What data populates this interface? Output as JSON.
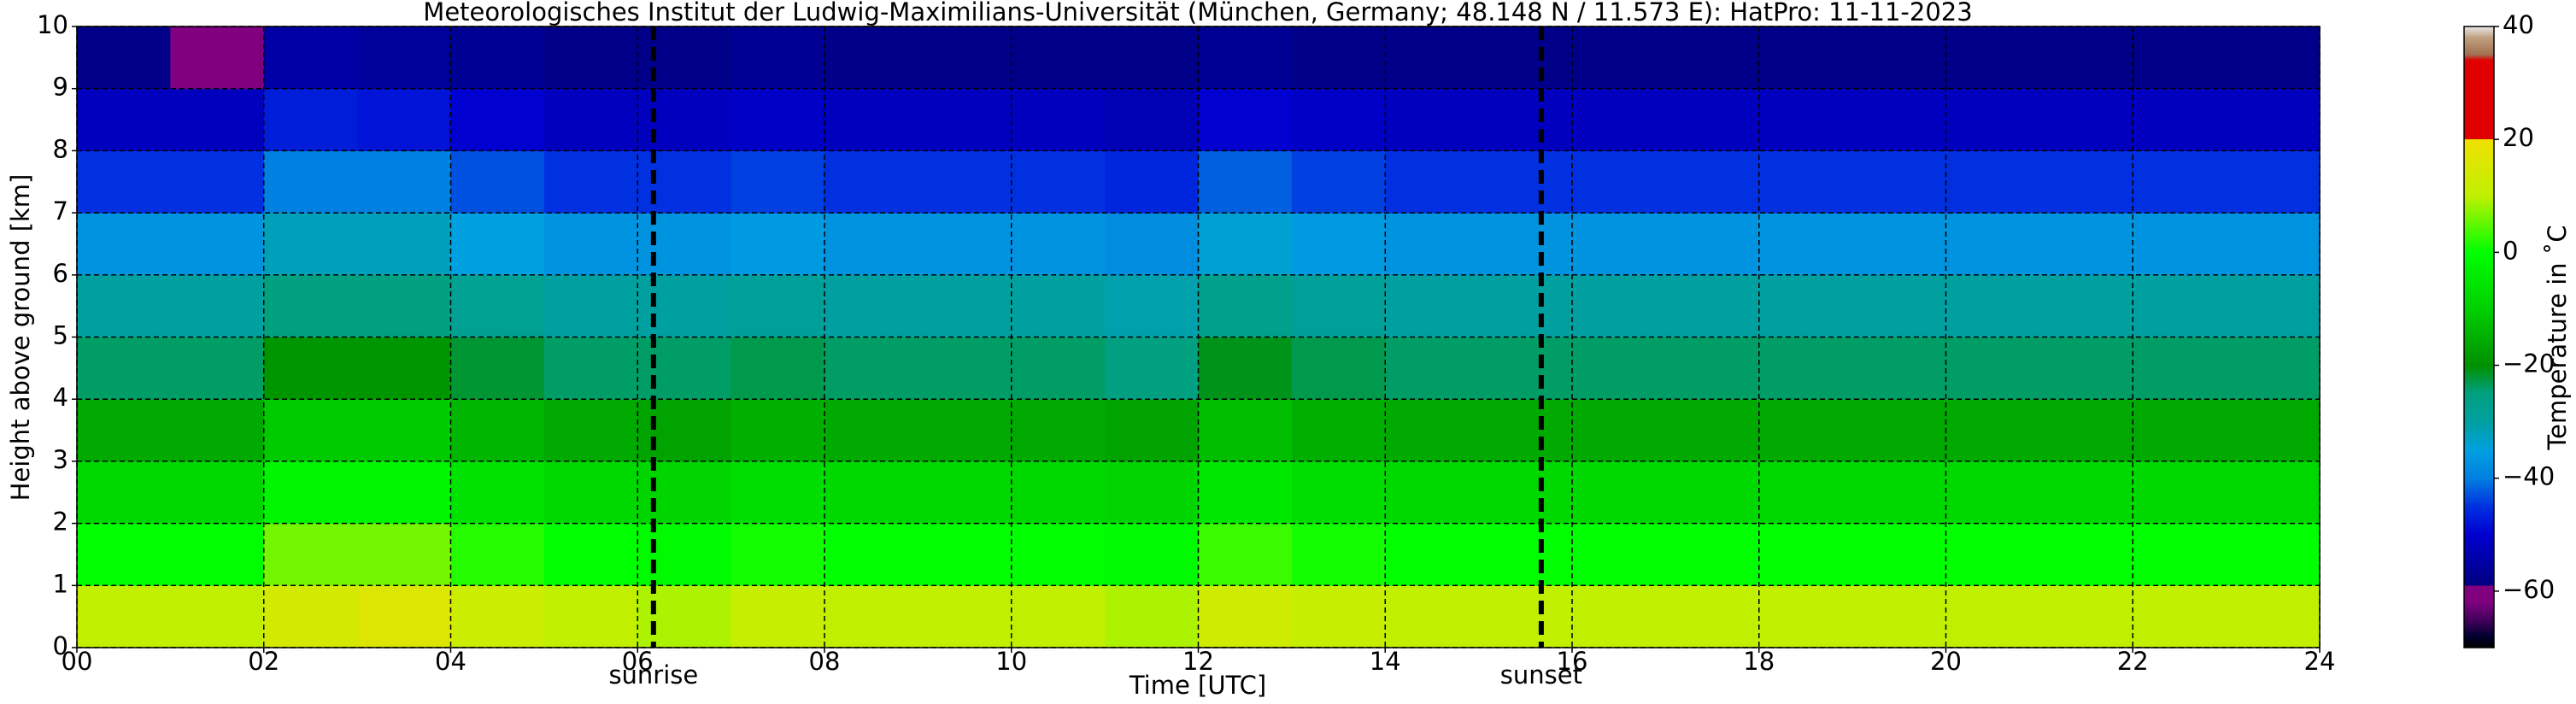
{
  "chart_data": {
    "type": "heatmap",
    "title": "Meteorologisches Institut der Ludwig-Maximilians-Universität (München, Germany; 48.148 N / 11.573 E):    HatPro: 11-11-2023",
    "xlabel": "Time [UTC]",
    "ylabel": "Height above ground [km]",
    "xbins": [
      0,
      1,
      2,
      3,
      4,
      5,
      6,
      7,
      8,
      9,
      10,
      11,
      12,
      13,
      14,
      15,
      16,
      17,
      18,
      19,
      20,
      21,
      22,
      23,
      24
    ],
    "ybins": [
      0,
      1,
      2,
      3,
      4,
      5,
      6,
      7,
      8,
      9,
      10
    ],
    "values": [
      [
        10,
        10,
        14,
        16,
        12,
        10,
        9,
        11,
        10,
        10,
        10,
        9,
        13,
        11,
        10,
        10,
        10,
        10,
        10,
        10,
        10,
        10,
        10,
        10
      ],
      [
        0,
        0,
        6,
        6,
        2,
        0,
        -1,
        1,
        0,
        0,
        0,
        -1,
        3,
        1,
        0,
        0,
        0,
        0,
        0,
        0,
        0,
        0,
        0,
        0
      ],
      [
        -8,
        -8,
        -2,
        -2,
        -6,
        -8,
        -9,
        -7,
        -8,
        -8,
        -8,
        -9,
        -5,
        -7,
        -8,
        -8,
        -8,
        -8,
        -8,
        -8,
        -8,
        -8,
        -8,
        -8
      ],
      [
        -16,
        -16,
        -11,
        -11,
        -14,
        -16,
        -17,
        -15,
        -16,
        -16,
        -16,
        -17,
        -13,
        -15,
        -16,
        -16,
        -16,
        -16,
        -16,
        -16,
        -16,
        -16,
        -16,
        -16
      ],
      [
        -24,
        -24,
        -19,
        -19,
        -22,
        -24,
        -24,
        -23,
        -24,
        -24,
        -24,
        -25,
        -21,
        -23,
        -24,
        -24,
        -24,
        -24,
        -24,
        -24,
        -24,
        -24,
        -24,
        -24
      ],
      [
        -30,
        -30,
        -25,
        -25,
        -28,
        -30,
        -30,
        -29,
        -30,
        -30,
        -30,
        -31,
        -27,
        -29,
        -30,
        -30,
        -30,
        -30,
        -30,
        -30,
        -30,
        -30,
        -30,
        -30
      ],
      [
        -37,
        -37,
        -32,
        -32,
        -35,
        -37,
        -37,
        -36,
        -37,
        -37,
        -37,
        -38,
        -34,
        -36,
        -37,
        -37,
        -37,
        -37,
        -37,
        -37,
        -37,
        -37,
        -37,
        -37
      ],
      [
        -45,
        -45,
        -40,
        -40,
        -43,
        -45,
        -45,
        -44,
        -45,
        -45,
        -45,
        -46,
        -42,
        -44,
        -45,
        -45,
        -45,
        -45,
        -45,
        -45,
        -45,
        -45,
        -45,
        -45
      ],
      [
        -52,
        -52,
        -47,
        -48,
        -50,
        -52,
        -52,
        -51,
        -52,
        -52,
        -52,
        -53,
        -50,
        -51,
        -52,
        -52,
        -52,
        -52,
        -52,
        -52,
        -52,
        -52,
        -52,
        -52
      ],
      [
        -58,
        -59,
        -55,
        -56,
        -57,
        -58,
        -58,
        -57,
        -58,
        -58,
        -58,
        -58,
        -57,
        -58,
        -58,
        -58,
        -58,
        -58,
        -58,
        -58,
        -58,
        -58,
        -58,
        -58
      ]
    ],
    "xlim": [
      0,
      24
    ],
    "ylim": [
      0,
      10
    ],
    "xticks": [
      {
        "value": 0,
        "label": "00"
      },
      {
        "value": 2,
        "label": "02"
      },
      {
        "value": 4,
        "label": "04"
      },
      {
        "value": 6,
        "label": "06"
      },
      {
        "value": 8,
        "label": "08"
      },
      {
        "value": 10,
        "label": "10"
      },
      {
        "value": 12,
        "label": "12"
      },
      {
        "value": 14,
        "label": "14"
      },
      {
        "value": 16,
        "label": "16"
      },
      {
        "value": 18,
        "label": "18"
      },
      {
        "value": 20,
        "label": "20"
      },
      {
        "value": 22,
        "label": "22"
      },
      {
        "value": 24,
        "label": "24"
      }
    ],
    "yticks": [
      0,
      1,
      2,
      3,
      4,
      5,
      6,
      7,
      8,
      9,
      10
    ],
    "grid": true,
    "annotations": [
      {
        "label": "sunrise",
        "x": 6.17
      },
      {
        "label": "sunset",
        "x": 15.67
      }
    ],
    "colorbar": {
      "label": "Temperature in ˚C",
      "lim": [
        -70,
        40
      ],
      "ticks": [
        {
          "value": -60,
          "label": "−60"
        },
        {
          "value": -40,
          "label": "−40"
        },
        {
          "value": -20,
          "label": "−20"
        },
        0,
        20,
        40
      ],
      "colormap": [
        {
          "value": -70,
          "color": "#000000"
        },
        {
          "value": -68,
          "color": "#000030"
        },
        {
          "value": -66,
          "color": "#300050"
        },
        {
          "value": -62,
          "color": "#800080"
        },
        {
          "value": -59,
          "color": "#800080"
        },
        {
          "value": -59,
          "color": "#000080"
        },
        {
          "value": -50,
          "color": "#0000d0"
        },
        {
          "value": -45,
          "color": "#0030e0"
        },
        {
          "value": -40,
          "color": "#0080e0"
        },
        {
          "value": -35,
          "color": "#00a0e0"
        },
        {
          "value": -30,
          "color": "#00a0a0"
        },
        {
          "value": -25,
          "color": "#00a080"
        },
        {
          "value": -20,
          "color": "#009000"
        },
        {
          "value": -10,
          "color": "#00d000"
        },
        {
          "value": 0,
          "color": "#00ff00"
        },
        {
          "value": 10,
          "color": "#c0f000"
        },
        {
          "value": 20,
          "color": "#f0e000"
        },
        {
          "value": 20,
          "color": "#e00000"
        },
        {
          "value": 34,
          "color": "#e00000"
        },
        {
          "value": 35,
          "color": "#a07050"
        },
        {
          "value": 38,
          "color": "#c0a080"
        },
        {
          "value": 40,
          "color": "#e8e8e8"
        }
      ]
    }
  }
}
